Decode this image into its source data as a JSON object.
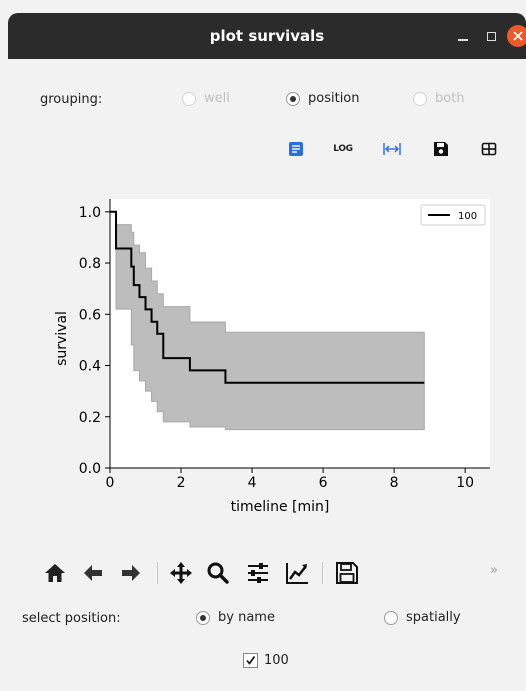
{
  "window": {
    "title": "plot survivals"
  },
  "grouping": {
    "label": "grouping:",
    "options": [
      {
        "label": "well",
        "checked": false,
        "disabled": true
      },
      {
        "label": "position",
        "checked": true,
        "disabled": false
      },
      {
        "label": "both",
        "checked": false,
        "disabled": true
      }
    ]
  },
  "toolbar": {
    "log_label": "LOG",
    "icons": [
      "table-icon",
      "log-scale-icon",
      "fit-width-icon",
      "save-icon",
      "grid-icon"
    ]
  },
  "chart_data": {
    "type": "line",
    "xlabel": "timeline [min]",
    "ylabel": "survival",
    "xlim": [
      0,
      10.7
    ],
    "ylim": [
      0,
      1.05
    ],
    "xticks": [
      0,
      2,
      4,
      6,
      8,
      10
    ],
    "yticks": [
      0.0,
      0.2,
      0.4,
      0.6,
      0.8,
      1.0
    ],
    "xtick_labels": [
      "0",
      "2",
      "4",
      "6",
      "8",
      "10"
    ],
    "ytick_labels": [
      "0.0",
      "0.2",
      "0.4",
      "0.6",
      "0.8",
      "1.0"
    ],
    "legend_position": "top-right",
    "grid": false,
    "colors": {
      "line": "#000000",
      "band": "#bdbdbd"
    },
    "series": [
      {
        "name": "100",
        "step": true,
        "x": [
          0,
          0.17,
          0.6,
          0.67,
          0.83,
          1.0,
          1.17,
          1.33,
          1.5,
          2.25,
          3.25,
          8.85
        ],
        "y": [
          1.0,
          0.857,
          0.786,
          0.714,
          0.667,
          0.619,
          0.571,
          0.524,
          0.429,
          0.381,
          0.333,
          0.333
        ],
        "ci_lower": [
          1.0,
          0.62,
          0.48,
          0.38,
          0.34,
          0.3,
          0.26,
          0.22,
          0.18,
          0.16,
          0.15,
          0.15
        ],
        "ci_upper": [
          1.0,
          0.95,
          0.92,
          0.87,
          0.84,
          0.78,
          0.73,
          0.68,
          0.63,
          0.57,
          0.53,
          0.53
        ]
      }
    ]
  },
  "navbar": {
    "icons": [
      "home-icon",
      "back-icon",
      "forward-icon",
      "pan-icon",
      "zoom-icon",
      "configure-subplots-icon",
      "edit-axes-icon",
      "save-figure-icon"
    ],
    "overflow": "»"
  },
  "select_position": {
    "label": "select position:",
    "options": [
      {
        "label": "by name",
        "checked": true
      },
      {
        "label": "spatially",
        "checked": false
      }
    ]
  },
  "positions": [
    {
      "label": "100",
      "checked": true
    }
  ]
}
